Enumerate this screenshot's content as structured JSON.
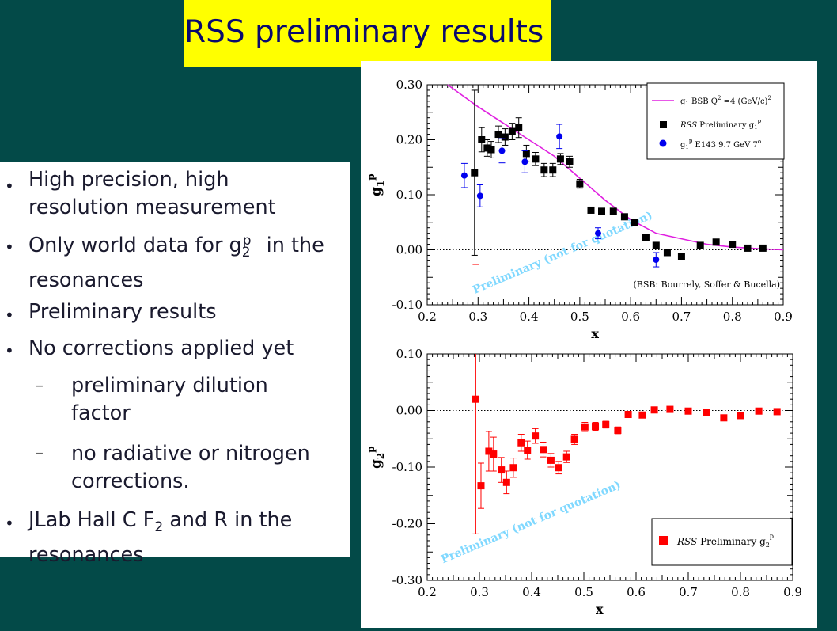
{
  "slide": {
    "title": "RSS preliminary results",
    "bullets": {
      "b1": "High precision, high resolution measurement",
      "b2_pre": "Only world data for g",
      "b2_sub": "2",
      "b2_sup": "p",
      "b2_post": " in the resonances",
      "b3": "Preliminary results",
      "b4": "No corrections applied yet",
      "s1": "preliminary dilution factor",
      "s2": "no radiative or nitrogen corrections.",
      "b5_pre": "JLab Hall C F",
      "b5_sub": "2",
      "b5_post": " and R in the resonances"
    }
  },
  "colors": {
    "background": "#034a48",
    "title_bg": "#ffff00",
    "title_text": "#0a0a6e",
    "bsb_curve": "#e020e0",
    "rss_g1": "#000000",
    "e143": "#0000ee",
    "rss_g2": "#ff0000",
    "watermark": "#7fd8ff"
  },
  "chart_data": [
    {
      "type": "scatter",
      "ylabel_main": "g",
      "ylabel_sub": "1",
      "ylabel_sup": "p",
      "xlabel": "x",
      "xlim": [
        0.2,
        0.9
      ],
      "ylim": [
        -0.1,
        0.3
      ],
      "xticks": [
        "0.2",
        "0.3",
        "0.4",
        "0.5",
        "0.6",
        "0.7",
        "0.8",
        "0.9"
      ],
      "yticks": [
        "-0.10",
        "0.00",
        "0.10",
        "0.20",
        "0.30"
      ],
      "zero_line": true,
      "watermark": "Preliminary (not for quotation)",
      "note": "(BSB:  Bourrely, Soffer & Bucella)",
      "legend": [
        {
          "main": "g",
          "sub": "1",
          "text": " BSB Q",
          "sup": "2",
          "post": " =4 (GeV/c)",
          "sup2": "2"
        },
        {
          "main": "RSS",
          "text": " Preliminary g",
          "sub": "1",
          "sup": "p"
        },
        {
          "main": "g",
          "sub": "1",
          "sup": "p",
          "text": " E143 9.7 GeV 7",
          "sup2": "o"
        }
      ],
      "series": [
        {
          "name": "g1 BSB Q2=4 (GeV/c)2",
          "kind": "line",
          "x": [
            0.24,
            0.3,
            0.35,
            0.4,
            0.45,
            0.5,
            0.55,
            0.6,
            0.65,
            0.7,
            0.75,
            0.8,
            0.85,
            0.9
          ],
          "y": [
            0.3,
            0.26,
            0.23,
            0.2,
            0.17,
            0.13,
            0.09,
            0.055,
            0.03,
            0.02,
            0.01,
            0.005,
            0.002,
            0.0
          ]
        },
        {
          "name": "RSS Preliminary g1p",
          "kind": "square",
          "x": [
            0.293,
            0.307,
            0.318,
            0.326,
            0.34,
            0.353,
            0.367,
            0.38,
            0.395,
            0.413,
            0.43,
            0.447,
            0.462,
            0.48,
            0.5,
            0.522,
            0.543,
            0.566,
            0.588,
            0.607,
            0.63,
            0.65,
            0.672,
            0.7,
            0.737,
            0.768,
            0.8,
            0.83,
            0.86
          ],
          "y": [
            0.14,
            0.2,
            0.185,
            0.182,
            0.21,
            0.205,
            0.215,
            0.222,
            0.175,
            0.165,
            0.145,
            0.145,
            0.165,
            0.16,
            0.12,
            0.072,
            0.07,
            0.07,
            0.06,
            0.05,
            0.022,
            0.008,
            -0.005,
            -0.012,
            0.008,
            0.014,
            0.01,
            0.003,
            0.003
          ],
          "err": [
            0.15,
            0.022,
            0.015,
            0.015,
            0.015,
            0.015,
            0.015,
            0.018,
            0.015,
            0.012,
            0.012,
            0.012,
            0.01,
            0.01,
            0.008,
            0.005,
            0.005,
            0.005,
            0.005,
            0.005,
            0.004,
            0.004,
            0.004,
            0.004,
            0.004,
            0.004,
            0.004,
            0.004,
            0.004
          ]
        },
        {
          "name": "g1p E143 9.7 GeV 7o",
          "kind": "circle",
          "x": [
            0.273,
            0.304,
            0.347,
            0.392,
            0.46,
            0.536,
            0.65
          ],
          "y": [
            0.135,
            0.098,
            0.18,
            0.16,
            0.206,
            0.03,
            -0.018
          ],
          "err": [
            0.022,
            0.02,
            0.022,
            0.02,
            0.022,
            0.01,
            0.013
          ]
        }
      ]
    },
    {
      "type": "scatter",
      "ylabel_main": "g",
      "ylabel_sub": "2",
      "ylabel_sup": "p",
      "xlabel": "x",
      "xlim": [
        0.2,
        0.9
      ],
      "ylim": [
        -0.3,
        0.1
      ],
      "xticks": [
        "0.2",
        "0.3",
        "0.4",
        "0.5",
        "0.6",
        "0.7",
        "0.8",
        "0.9"
      ],
      "yticks": [
        "-0.30",
        "-0.20",
        "-0.10",
        "0.00",
        "0.10"
      ],
      "zero_line": true,
      "watermark": "Preliminary (not for quotation)",
      "legend": [
        {
          "main": "RSS",
          "text": " Preliminary g",
          "sub": "2",
          "sup": "p"
        }
      ],
      "series": [
        {
          "name": "RSS Preliminary g2p",
          "kind": "square",
          "x": [
            0.293,
            0.303,
            0.318,
            0.327,
            0.342,
            0.352,
            0.365,
            0.38,
            0.392,
            0.407,
            0.422,
            0.437,
            0.452,
            0.467,
            0.482,
            0.502,
            0.522,
            0.542,
            0.565,
            0.585,
            0.612,
            0.635,
            0.665,
            0.7,
            0.735,
            0.768,
            0.8,
            0.835,
            0.87
          ],
          "y": [
            0.02,
            -0.133,
            -0.072,
            -0.077,
            -0.105,
            -0.127,
            -0.101,
            -0.057,
            -0.07,
            -0.045,
            -0.069,
            -0.088,
            -0.101,
            -0.082,
            -0.051,
            -0.029,
            -0.028,
            -0.025,
            -0.035,
            -0.007,
            -0.008,
            0.001,
            0.002,
            -0.001,
            -0.003,
            -0.013,
            -0.009,
            -0.001,
            -0.002
          ],
          "err": [
            0.238,
            0.04,
            0.035,
            0.03,
            0.022,
            0.02,
            0.017,
            0.015,
            0.016,
            0.013,
            0.013,
            0.012,
            0.011,
            0.01,
            0.009,
            0.008,
            0.007,
            0.006,
            0.006,
            0.005,
            0.005,
            0.004,
            0.004,
            0.004,
            0.004,
            0.004,
            0.004,
            0.004,
            0.004
          ]
        }
      ]
    }
  ]
}
